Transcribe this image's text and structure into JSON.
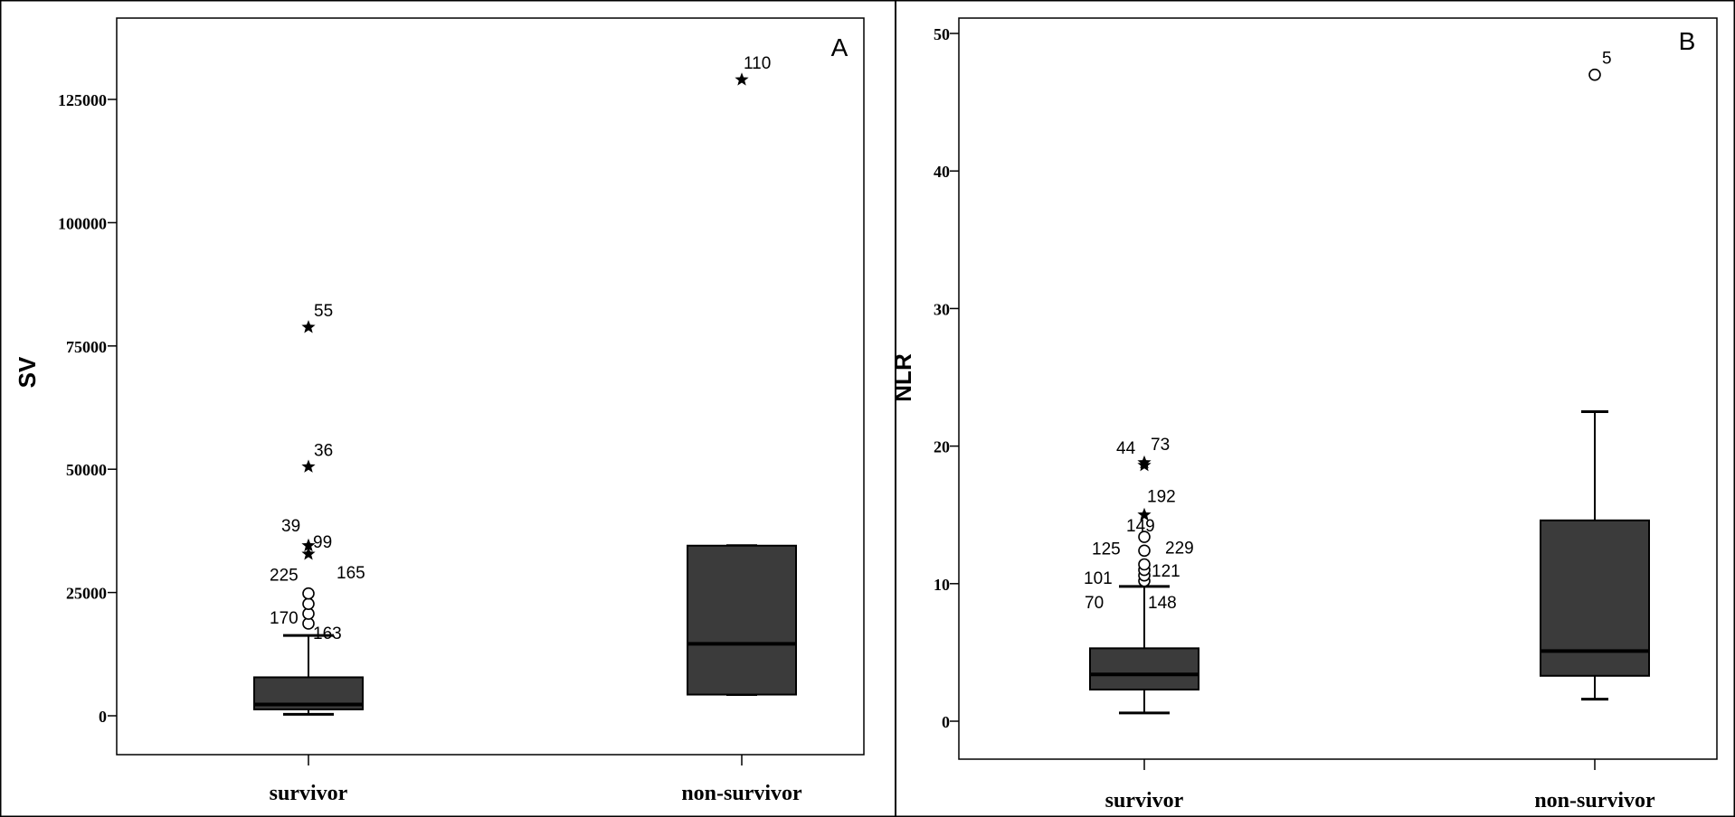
{
  "chart_data": [
    {
      "type": "box",
      "panel_label": "A",
      "ylabel": "SV",
      "xlabel": "",
      "ylim": [
        -8000,
        139000
      ],
      "yticks": [
        0,
        25000,
        50000,
        75000,
        100000,
        125000
      ],
      "ytick_labels": [
        "0",
        "25000",
        "50000",
        "75000",
        "100000",
        "125000"
      ],
      "categories": [
        "survivor",
        "non-survivor"
      ],
      "boxes": [
        {
          "category": "survivor",
          "whisker_low": 300,
          "q1": 1300,
          "median": 2300,
          "q3": 7800,
          "whisker_high": 16300,
          "outliers": [
            {
              "value": 18700,
              "marker": "circle",
              "label": "170"
            },
            {
              "value": 20700,
              "marker": "circle",
              "label": ""
            },
            {
              "value": 22700,
              "marker": "circle",
              "label": "165"
            },
            {
              "value": 24800,
              "marker": "circle",
              "label": "225"
            },
            {
              "value": 32800,
              "marker": "star",
              "label": "99"
            },
            {
              "value": 34500,
              "marker": "star",
              "label": "39"
            },
            {
              "value": 50500,
              "marker": "star",
              "label": "36"
            },
            {
              "value": 78800,
              "marker": "star",
              "label": "55"
            }
          ],
          "extra_labels": [
            "163"
          ]
        },
        {
          "category": "non-survivor",
          "whisker_low": 4300,
          "q1": 4300,
          "median": 14600,
          "q3": 34500,
          "whisker_high": 34500,
          "outliers": [
            {
              "value": 129000,
              "marker": "star",
              "label": "110"
            }
          ],
          "extra_labels": []
        }
      ]
    },
    {
      "type": "box",
      "panel_label": "B",
      "ylabel": "NLR",
      "xlabel": "",
      "ylim": [
        -2.7,
        51.2
      ],
      "yticks": [
        0,
        10,
        20,
        30,
        40,
        50
      ],
      "ytick_labels": [
        "0",
        "10",
        "20",
        "30",
        "40",
        "50"
      ],
      "categories": [
        "survivor",
        "non-survivor"
      ],
      "boxes": [
        {
          "category": "survivor",
          "whisker_low": 0.6,
          "q1": 2.3,
          "median": 3.4,
          "q3": 5.3,
          "whisker_high": 9.8,
          "outliers": [
            {
              "value": 10.2,
              "marker": "circle",
              "label": ""
            },
            {
              "value": 10.6,
              "marker": "circle",
              "label": ""
            },
            {
              "value": 11.0,
              "marker": "circle",
              "label": ""
            },
            {
              "value": 11.4,
              "marker": "circle",
              "label": ""
            },
            {
              "value": 12.4,
              "marker": "circle",
              "label": ""
            },
            {
              "value": 13.4,
              "marker": "circle",
              "label": ""
            },
            {
              "value": 15.0,
              "marker": "star",
              "label": "192"
            },
            {
              "value": 18.6,
              "marker": "star",
              "label": ""
            },
            {
              "value": 18.8,
              "marker": "star",
              "label": ""
            }
          ],
          "extra_labels": [
            "44",
            "73",
            "149",
            "125",
            "229",
            "101",
            "121",
            "70",
            "148"
          ]
        },
        {
          "category": "non-survivor",
          "whisker_low": 1.6,
          "q1": 3.3,
          "median": 5.1,
          "q3": 14.6,
          "whisker_high": 22.5,
          "outliers": [
            {
              "value": 47.0,
              "marker": "circle",
              "label": "5"
            }
          ],
          "extra_labels": []
        }
      ]
    }
  ]
}
